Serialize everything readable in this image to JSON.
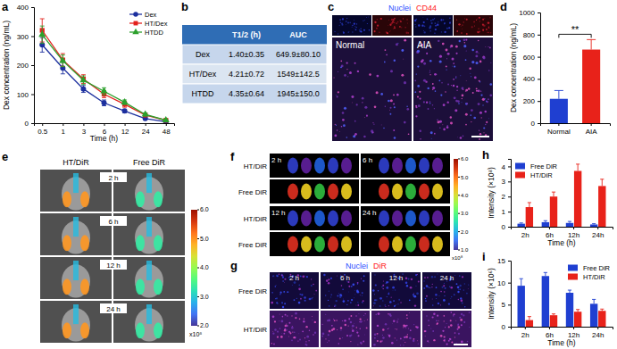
{
  "chart_data": [
    {
      "type": "line",
      "title": "a",
      "x_label": "Time (h)",
      "y_label": "Dex concentration (ng/mL)",
      "categories": [
        "0.5",
        "1",
        "3",
        "6",
        "12",
        "24",
        "48"
      ],
      "ylim": [
        0,
        400
      ],
      "yticks": [
        0,
        100,
        200,
        300,
        400
      ],
      "legend": "upper right",
      "series": [
        {
          "name": "Dex",
          "color": "#1c2f9e",
          "marker": "circle",
          "values": [
            270,
            190,
            118,
            70,
            42,
            16,
            5
          ],
          "errors": [
            25,
            20,
            12,
            10,
            6,
            4,
            2
          ]
        },
        {
          "name": "HT/Dex",
          "color": "#e3211c",
          "marker": "square",
          "values": [
            320,
            218,
            152,
            100,
            65,
            28,
            10
          ],
          "errors": [
            40,
            22,
            15,
            12,
            10,
            5,
            3
          ]
        },
        {
          "name": "HTDD",
          "color": "#2ca02c",
          "marker": "triangle",
          "values": [
            305,
            215,
            148,
            110,
            72,
            30,
            10
          ],
          "errors": [
            30,
            20,
            15,
            12,
            8,
            5,
            3
          ]
        }
      ]
    },
    {
      "type": "bar",
      "title": "d",
      "y_label": "Dex concentration (ng/mL)",
      "categories": [
        "Normal",
        "AIA"
      ],
      "values": [
        220,
        665
      ],
      "errors": [
        75,
        90
      ],
      "colors": [
        "#1f3fd1",
        "#e8221a"
      ],
      "ylim": [
        0,
        1000
      ],
      "yticks": [
        0,
        200,
        400,
        600,
        800,
        1000
      ],
      "annotations": [
        {
          "text": "**"
        }
      ]
    },
    {
      "type": "bar",
      "title": "h",
      "x_label": "Time (h)",
      "y_label": "Intensity (×10⁸)",
      "categories": [
        "2h",
        "6h",
        "12h",
        "24h"
      ],
      "ylim": [
        0,
        4.5
      ],
      "yticks": [
        0,
        1,
        2,
        3,
        4
      ],
      "legend": "upper left",
      "series": [
        {
          "name": "Free DiR",
          "color": "#1f3fd1",
          "values": [
            0.2,
            0.3,
            0.25,
            0.15
          ],
          "errors": [
            0.05,
            0.1,
            0.1,
            0.05
          ]
        },
        {
          "name": "HT/DiR",
          "color": "#e8221a",
          "values": [
            1.3,
            2.0,
            3.7,
            2.7
          ],
          "errors": [
            0.3,
            0.3,
            0.45,
            0.45
          ]
        }
      ]
    },
    {
      "type": "bar",
      "title": "i",
      "x_label": "Time (h)",
      "y_label": "Intensity (×10⁶)",
      "categories": [
        "2h",
        "6h",
        "12h",
        "24h"
      ],
      "ylim": [
        0,
        15
      ],
      "yticks": [
        0,
        5,
        10,
        15
      ],
      "legend": "upper right",
      "series": [
        {
          "name": "Free DiR",
          "color": "#1f3fd1",
          "values": [
            9.3,
            11.5,
            7.7,
            5.2
          ],
          "errors": [
            1.6,
            0.8,
            0.6,
            1.0
          ]
        },
        {
          "name": "HT/DiR",
          "color": "#e8221a",
          "values": [
            1.5,
            2.6,
            3.4,
            3.6
          ],
          "errors": [
            0.8,
            0.3,
            0.5,
            0.4
          ]
        }
      ]
    }
  ],
  "table": {
    "label": "b",
    "header": [
      "T1/2 (h)",
      "AUC"
    ],
    "rows": [
      [
        "Dex",
        "1.40±0.35",
        "649.9±80.10"
      ],
      [
        "HT/Dex",
        "4.21±0.72",
        "1549±142.5"
      ],
      [
        "HTDD",
        "4.35±0.64",
        "1945±150.0"
      ]
    ]
  },
  "images": {
    "c": {
      "label": "c",
      "channels": [
        "Nuclei",
        "CD44"
      ],
      "groups": [
        "Normal",
        "AIA"
      ]
    },
    "e": {
      "label": "e",
      "columns": [
        "HT/DiR",
        "Free DiR"
      ],
      "rows": [
        "2 h",
        "6 h",
        "12 h",
        "24 h"
      ],
      "colorbar": {
        "range": [
          2,
          6
        ],
        "ticks": [
          {
            "value": 2,
            "label": "2.0"
          },
          {
            "value": 3,
            "label": "3.0"
          },
          {
            "value": 4,
            "label": "4.0"
          },
          {
            "value": 5,
            "label": "5.0"
          },
          {
            "value": 6,
            "label": "6.0"
          }
        ],
        "unit": "x10⁸"
      }
    },
    "f": {
      "label": "f",
      "rows": [
        "HT/DiR",
        "Free DiR"
      ],
      "times": [
        "2 h",
        "6 h",
        "12 h",
        "24 h"
      ],
      "colorbar": {
        "range": [
          1,
          6
        ],
        "ticks": [
          {
            "value": 1,
            "label": "1.0"
          },
          {
            "value": 2,
            "label": "2.0"
          },
          {
            "value": 3,
            "label": "3.0"
          },
          {
            "value": 4,
            "label": "4.0"
          },
          {
            "value": 5,
            "label": "5.0"
          },
          {
            "value": 6,
            "label": "6.0"
          }
        ],
        "unit": "x10⁸"
      }
    },
    "g": {
      "label": "g",
      "channels": [
        "Nuclei",
        "DiR"
      ],
      "rows": [
        "Free DiR",
        "HT/DiR"
      ],
      "columns": [
        "2 h",
        "6 h",
        "12 h",
        "24 h"
      ]
    }
  }
}
